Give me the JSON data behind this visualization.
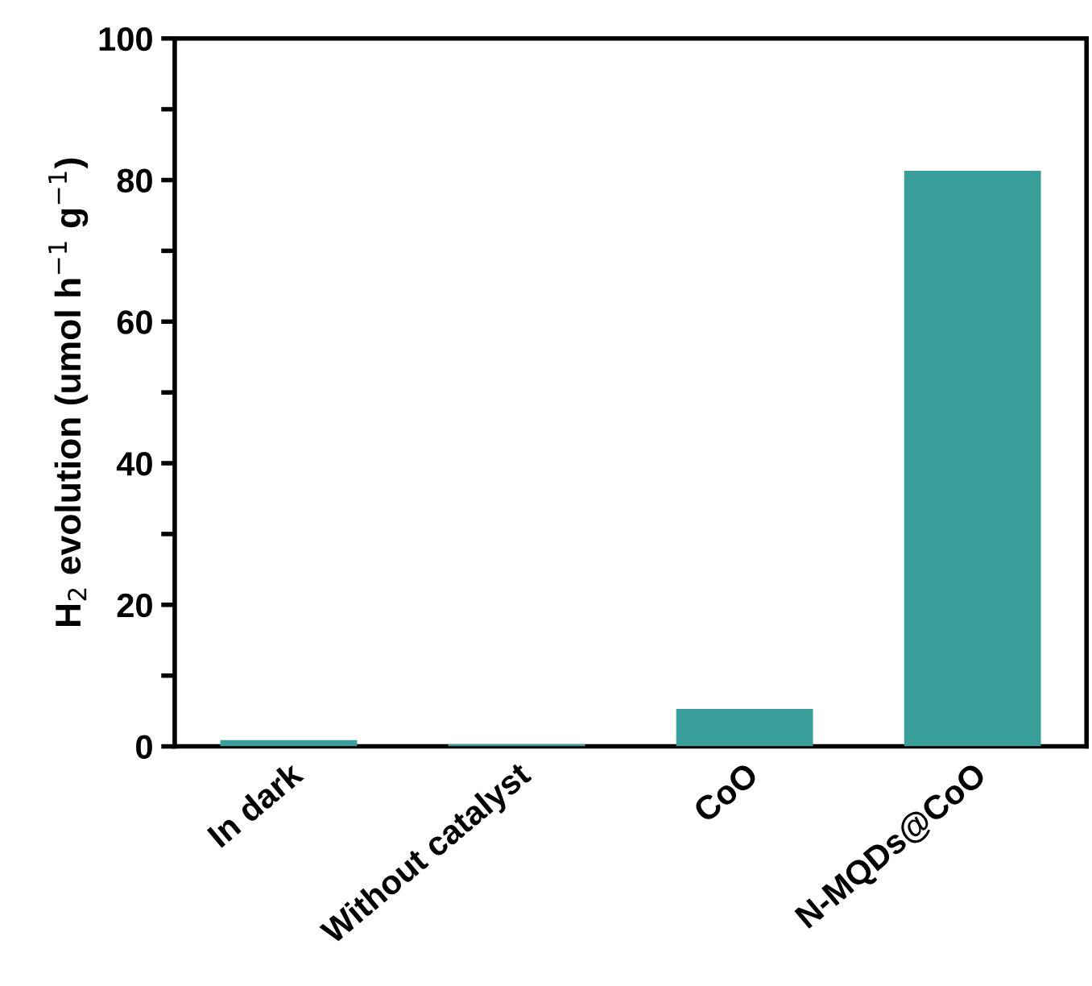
{
  "chart_data": {
    "type": "bar",
    "ylabel": "H$_{2}$ evolution (umol h$^{−1}$ g$^{−1}$)",
    "categories": [
      "In dark",
      "Without catalyst",
      "CoO",
      "N-MQDs@CoO"
    ],
    "values": [
      0.9,
      0.3,
      5.3,
      81.3
    ],
    "color": "#3a9e9a",
    "ylim": [
      0,
      100
    ],
    "yticks": [
      0,
      {
        "value": 10,
        "label": null
      },
      20,
      {
        "value": 30,
        "label": null
      },
      40,
      {
        "value": 50,
        "label": null
      },
      60,
      {
        "value": 70,
        "label": null
      },
      80,
      {
        "value": 90,
        "label": null
      },
      100
    ],
    "grid": false
  }
}
